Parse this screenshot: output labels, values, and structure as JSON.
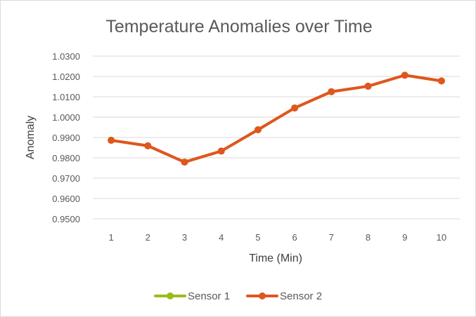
{
  "chart_data": {
    "type": "line",
    "title": "Temperature Anomalies over Time",
    "xlabel": "Time (Min)",
    "ylabel": "Anomaly",
    "x": [
      1,
      2,
      3,
      4,
      5,
      6,
      7,
      8,
      9,
      10
    ],
    "ylim": [
      0.95,
      1.03
    ],
    "yticks": [
      "0.9500",
      "0.9600",
      "0.9700",
      "0.9800",
      "0.9900",
      "1.0000",
      "1.0100",
      "1.0200",
      "1.0300"
    ],
    "grid": true,
    "legend_position": "bottom",
    "series": [
      {
        "name": "Sensor 1",
        "color": "#9bbb1c",
        "values": [
          0.9886,
          0.9859,
          0.9779,
          0.9833,
          0.9938,
          1.0045,
          1.0125,
          1.0152,
          1.0206,
          1.0178
        ]
      },
      {
        "name": "Sensor 2",
        "color": "#e0561f",
        "values": [
          0.9886,
          0.9859,
          0.9779,
          0.9833,
          0.9938,
          1.0045,
          1.0125,
          1.0152,
          1.0206,
          1.0178
        ]
      }
    ]
  }
}
